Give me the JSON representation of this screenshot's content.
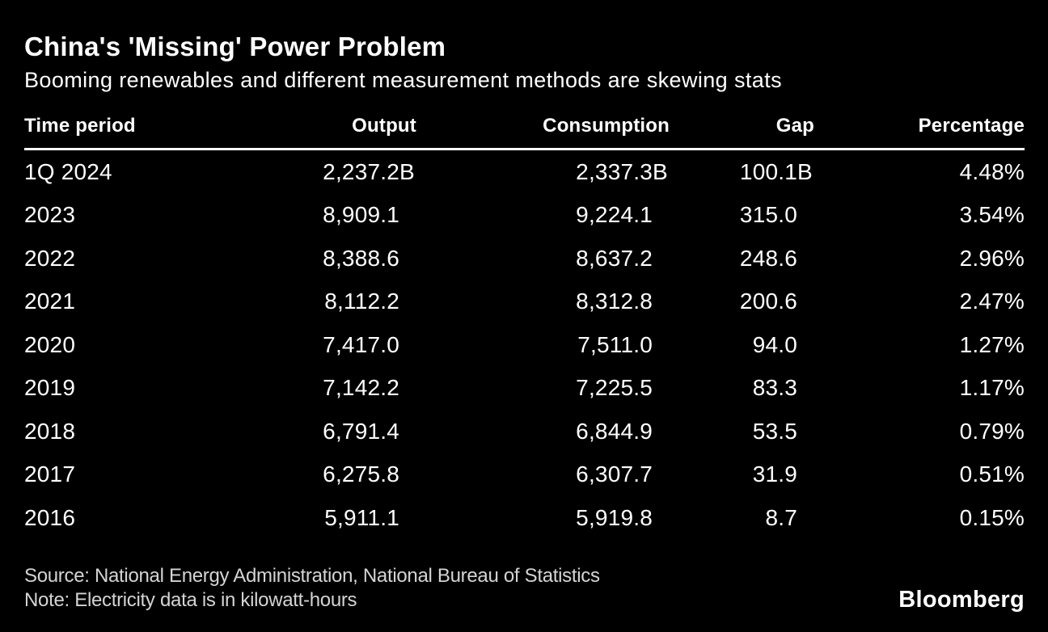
{
  "header": {
    "title": "China's 'Missing' Power Problem",
    "subtitle": "Booming renewables and different measurement methods are skewing stats"
  },
  "footer": {
    "source": "Source: National Energy Administration, National Bureau of Statistics",
    "note": "Note: Electricity data is in kilowatt-hours",
    "logo": "Bloomberg"
  },
  "colors": {
    "background": "#000000",
    "text": "#ffffff",
    "muted_text": "#d4d4d4",
    "rule": "#ffffff"
  },
  "chart_data": {
    "type": "table",
    "title": "China's 'Missing' Power Problem",
    "subtitle": "Booming renewables and different measurement methods are skewing stats",
    "unit_note": "Electricity data is in kilowatt-hours",
    "columns": [
      "Time period",
      "Output",
      "Consumption",
      "Gap",
      "Percentage"
    ],
    "rows": [
      {
        "period": "1Q 2024",
        "output": "2,237.2",
        "output_suffix": "B",
        "consumption": "2,337.3",
        "consumption_suffix": "B",
        "gap": "100.1",
        "gap_suffix": "B",
        "percentage": "4.48%"
      },
      {
        "period": "2023",
        "output": "8,909.1",
        "output_suffix": "",
        "consumption": "9,224.1",
        "consumption_suffix": "",
        "gap": "315.0",
        "gap_suffix": "",
        "percentage": "3.54%"
      },
      {
        "period": "2022",
        "output": "8,388.6",
        "output_suffix": "",
        "consumption": "8,637.2",
        "consumption_suffix": "",
        "gap": "248.6",
        "gap_suffix": "",
        "percentage": "2.96%"
      },
      {
        "period": "2021",
        "output": "8,112.2",
        "output_suffix": "",
        "consumption": "8,312.8",
        "consumption_suffix": "",
        "gap": "200.6",
        "gap_suffix": "",
        "percentage": "2.47%"
      },
      {
        "period": "2020",
        "output": "7,417.0",
        "output_suffix": "",
        "consumption": "7,511.0",
        "consumption_suffix": "",
        "gap": "94.0",
        "gap_suffix": "",
        "percentage": "1.27%"
      },
      {
        "period": "2019",
        "output": "7,142.2",
        "output_suffix": "",
        "consumption": "7,225.5",
        "consumption_suffix": "",
        "gap": "83.3",
        "gap_suffix": "",
        "percentage": "1.17%"
      },
      {
        "period": "2018",
        "output": "6,791.4",
        "output_suffix": "",
        "consumption": "6,844.9",
        "consumption_suffix": "",
        "gap": "53.5",
        "gap_suffix": "",
        "percentage": "0.79%"
      },
      {
        "period": "2017",
        "output": "6,275.8",
        "output_suffix": "",
        "consumption": "6,307.7",
        "consumption_suffix": "",
        "gap": "31.9",
        "gap_suffix": "",
        "percentage": "0.51%"
      },
      {
        "period": "2016",
        "output": "5,911.1",
        "output_suffix": "",
        "consumption": "5,919.8",
        "consumption_suffix": "",
        "gap": "8.7",
        "gap_suffix": "",
        "percentage": "0.15%"
      }
    ]
  }
}
